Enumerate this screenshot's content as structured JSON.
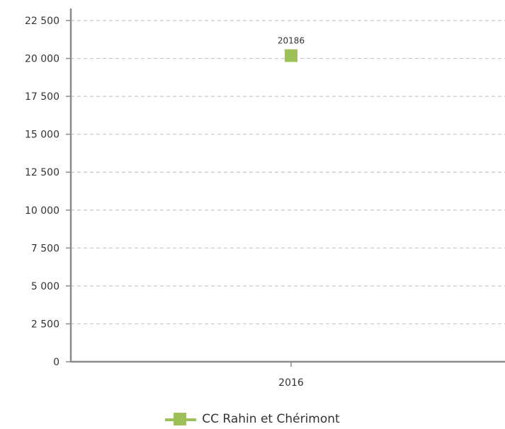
{
  "chart_data": {
    "type": "line",
    "categories": [
      "2016"
    ],
    "series": [
      {
        "name": "CC Rahin et Chérimont",
        "values": [
          20186
        ],
        "color": "#9dc158",
        "marker": "square"
      }
    ],
    "data_labels": [
      "20186"
    ],
    "ylim": [
      0,
      22500
    ],
    "yticks": [
      0,
      2500,
      5000,
      7500,
      10000,
      12500,
      15000,
      17500,
      20000,
      22500
    ],
    "ytick_labels": [
      "0",
      "2 500",
      "5 000",
      "7 500",
      "10 000",
      "12 500",
      "15 000",
      "17 500",
      "20 000",
      "22 500"
    ],
    "grid": true,
    "legend_position": "bottom"
  }
}
